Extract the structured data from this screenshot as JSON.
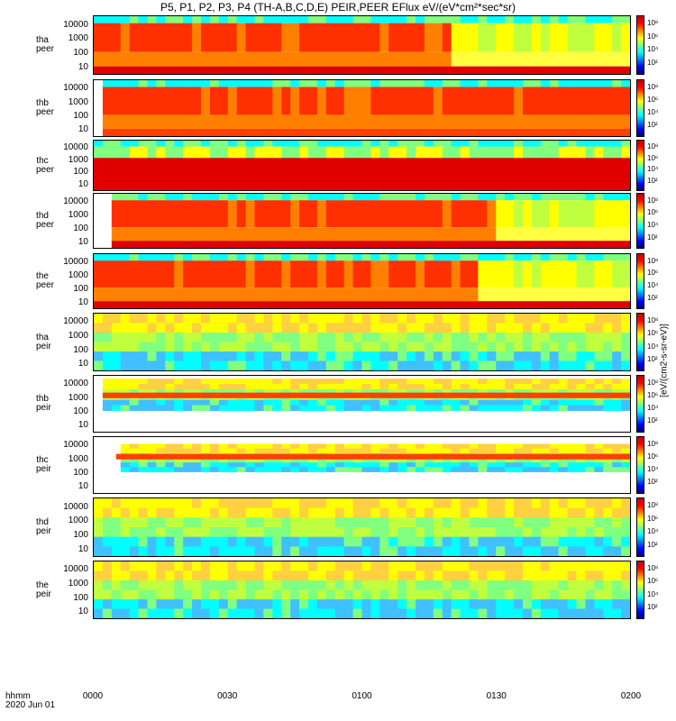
{
  "chart_data": {
    "type": "heatmap",
    "title": "P5, P1, P2, P3, P4 (TH-A,B,C,D,E) PEIR,PEER EFlux eV/(eV*cm²*sec*sr)",
    "xlabel": "hhmm",
    "date_label": "2020 Jun 01",
    "x_ticks": [
      "0000",
      "0030",
      "0100",
      "0130",
      "0200"
    ],
    "x_range_minutes": [
      0,
      120
    ],
    "y_scale": "log",
    "y_ticks": [
      "10",
      "100",
      "1000",
      "10000"
    ],
    "colorbar_ticks": [
      "10²",
      "10⁴",
      "10⁶",
      "10⁸"
    ],
    "colorbar_label": "[eV/(cm2-s-sr-eV)]",
    "panels": [
      {
        "id": "tha-peer",
        "label": "tha peer",
        "kind": "peer",
        "data_start_min": 0,
        "hot_until_min": 80,
        "low_band": true
      },
      {
        "id": "thb-peer",
        "label": "thb peer",
        "kind": "peer",
        "data_start_min": 2,
        "hot_until_min": 120,
        "low_band": false
      },
      {
        "id": "thc-peer",
        "label": "thc peer",
        "kind": "peer",
        "data_start_min": 0,
        "hot_until_min": 0,
        "low_band": true
      },
      {
        "id": "thd-peer",
        "label": "thd peer",
        "kind": "peer",
        "data_start_min": 4,
        "hot_until_min": 90,
        "low_band": true
      },
      {
        "id": "the-peer",
        "label": "the peer",
        "kind": "peer",
        "data_start_min": 0,
        "hot_until_min": 85,
        "low_band": true
      },
      {
        "id": "tha-peir",
        "label": "tha peir",
        "kind": "peir",
        "data_start_min": 0,
        "band": "full"
      },
      {
        "id": "thb-peir",
        "label": "thb peir",
        "kind": "peir",
        "data_start_min": 2,
        "band": "mid"
      },
      {
        "id": "thc-peir",
        "label": "thc peir",
        "kind": "peir",
        "data_start_min": 5,
        "band": "narrow"
      },
      {
        "id": "thd-peir",
        "label": "thd peir",
        "kind": "peir",
        "data_start_min": 0,
        "band": "full"
      },
      {
        "id": "the-peir",
        "label": "the peir",
        "kind": "peir",
        "data_start_min": 0,
        "band": "full"
      }
    ]
  }
}
